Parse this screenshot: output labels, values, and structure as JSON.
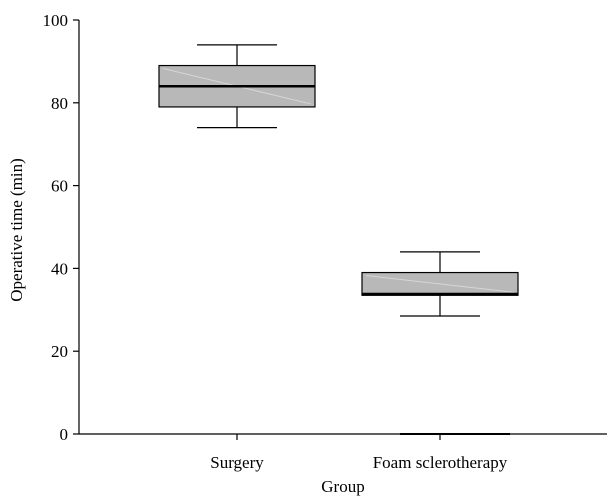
{
  "chart_data": {
    "type": "box",
    "xlabel": "Group",
    "ylabel": "Operative time (min)",
    "ylim": [
      0,
      100
    ],
    "yticks": [
      0,
      20,
      40,
      60,
      80,
      100
    ],
    "grid": false,
    "box_color": "#b8b8b8",
    "categories": [
      "Surgery",
      "Foam sclerotherapy"
    ],
    "boxes": [
      {
        "category": "Surgery",
        "whisker_low": 74,
        "q1": 79,
        "median": 84,
        "q3": 89,
        "whisker_high": 94
      },
      {
        "category": "Foam sclerotherapy",
        "whisker_low": 28.5,
        "q1": 33.5,
        "median": 33.8,
        "q3": 39,
        "whisker_high": 44,
        "outliers": [
          0
        ]
      }
    ]
  }
}
